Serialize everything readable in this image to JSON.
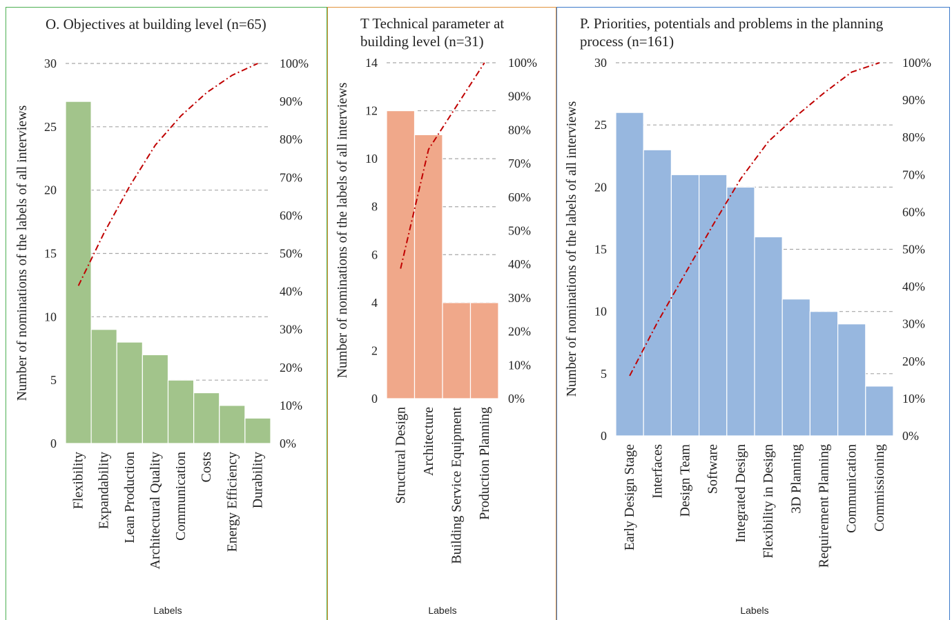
{
  "chart_data": [
    {
      "type": "bar",
      "title": "O. Objectives at building level (n=65)",
      "ylabel": "Number of  nominations of the labels of all interviews",
      "xlabel": "Labels",
      "categories": [
        "Flexibility",
        "Expandability",
        "Lean Production",
        "Architectural Quality",
        "Communication",
        "Costs",
        "Energy Efficiency",
        "Durability"
      ],
      "values": [
        27,
        9,
        8,
        7,
        5,
        4,
        3,
        2
      ],
      "cumulative_percent": [
        41.5,
        55.4,
        67.7,
        78.5,
        86.2,
        92.3,
        96.9,
        100
      ],
      "ylim": [
        0,
        30
      ],
      "yticks": [
        "0",
        "5",
        "10",
        "15",
        "20",
        "25",
        "30"
      ],
      "y2ticks": [
        "0%",
        "10%",
        "20%",
        "30%",
        "40%",
        "50%",
        "60%",
        "70%",
        "80%",
        "90%",
        "100%"
      ],
      "grid": true,
      "colors": {
        "bar": "#a2c48b",
        "line": "#c00000",
        "grid": "#a6a6a6"
      }
    },
    {
      "type": "bar",
      "title": "T Technical parameter at building level (n=31)",
      "title_lines": [
        "T Technical parameter at",
        "building level (n=31)"
      ],
      "ylabel": "Number of  nominations of the labels of all interviews",
      "xlabel": "Labels",
      "categories": [
        "Structural Design",
        "Architecture",
        "Building Service Equipment",
        "Production Planning"
      ],
      "values": [
        12,
        11,
        4,
        4
      ],
      "cumulative_percent": [
        38.7,
        74.2,
        87.1,
        100
      ],
      "ylim": [
        0,
        14
      ],
      "yticks": [
        "0",
        "2",
        "4",
        "6",
        "8",
        "10",
        "12",
        "14"
      ],
      "y2ticks": [
        "0%",
        "10%",
        "20%",
        "30%",
        "40%",
        "50%",
        "60%",
        "70%",
        "80%",
        "90%",
        "100%"
      ],
      "grid": true,
      "colors": {
        "bar": "#f0a88a",
        "line": "#c00000",
        "grid": "#a6a6a6"
      }
    },
    {
      "type": "bar",
      "title": "P. Priorities, potentials and problems in the planning process (n=161)",
      "title_lines": [
        "P. Priorities, potentials and problems in the planning",
        "process (n=161)"
      ],
      "ylabel": "Number of nominations of the labels of all interviews",
      "xlabel": "Labels",
      "categories": [
        "Early Design Stage",
        "Interfaces",
        "Design Team",
        "Software",
        "Integrated Design",
        "Flexibility in Design",
        "3D Planning",
        "Requirement Planning",
        "Communication",
        "Commissioning"
      ],
      "values": [
        26,
        23,
        21,
        21,
        20,
        16,
        11,
        10,
        9,
        4
      ],
      "cumulative_percent": [
        16.1,
        30.4,
        43.5,
        56.5,
        68.9,
        78.9,
        85.7,
        91.9,
        97.5,
        100
      ],
      "ylim": [
        0,
        30
      ],
      "yticks": [
        "0",
        "5",
        "10",
        "15",
        "20",
        "25",
        "30"
      ],
      "y2ticks": [
        "0%",
        "10%",
        "20%",
        "30%",
        "40%",
        "50%",
        "60%",
        "70%",
        "80%",
        "90%",
        "100%"
      ],
      "grid": true,
      "colors": {
        "bar": "#97b7df",
        "line": "#c00000",
        "grid": "#a6a6a6"
      }
    }
  ]
}
